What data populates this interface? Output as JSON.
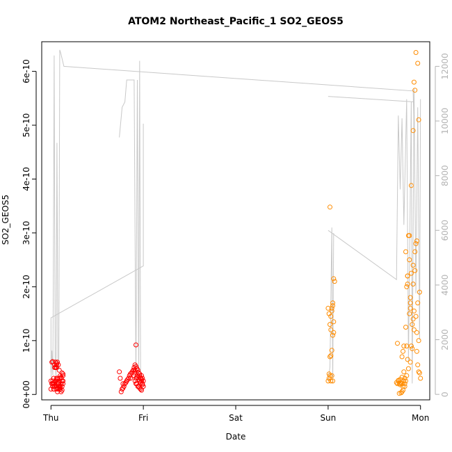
{
  "chart_data": {
    "type": "scatter",
    "title": "ATOM2 Northeast_Pacific_1 SO2_GEOS5",
    "xlabel": "Date",
    "ylabel": "SO2_GEOS5",
    "x_ticks": [
      "Thu",
      "Fri",
      "Sat",
      "Sun",
      "Mon"
    ],
    "x_tick_positions": [
      0,
      1,
      2,
      3,
      4
    ],
    "xlim": [
      -0.1,
      4.1
    ],
    "y_ticks": [
      "0e+00",
      "1e-10",
      "2e-10",
      "3e-10",
      "4e-10",
      "5e-10",
      "6e-10"
    ],
    "ylim": [
      -1e-11,
      6.55e-10
    ],
    "y2_ticks": [
      "0",
      "2000",
      "4000",
      "6000",
      "8000",
      "10000",
      "12000"
    ],
    "y2lim": [
      -200,
      12900
    ],
    "colors": {
      "series_red": "#ff0000",
      "series_orange": "#ff8c00",
      "altitude_line": "#c8c8c8",
      "right_axis": "#b3b3b3"
    },
    "altitude_series": {
      "axis": "right",
      "x": [
        0.0,
        0.02,
        0.03,
        0.04,
        0.05,
        0.06,
        0.08,
        0.1,
        0.1,
        0.11,
        0.12,
        0.13,
        0.14,
        0.15,
        0.16,
        0.17,
        0.17,
        1.0,
        1.01,
        1.0,
        0.99,
        0.98,
        0.97,
        0.96,
        0.95,
        0.94,
        0.93,
        0.92,
        0.91,
        0.9,
        0.89,
        0.88,
        0.87,
        0.86,
        0.85,
        0.84,
        0.83,
        0.82,
        0.81,
        0.8,
        0.79,
        0.78,
        0.77,
        0.76,
        0.75,
        0.74,
        0.73,
        0.72,
        0.71,
        0.7,
        0.69,
        0.68,
        0.67,
        0.66,
        0.65,
        0.64,
        0.63,
        0.62,
        0.61,
        0.6,
        0.59,
        0.58,
        0.57,
        0.56,
        0.55,
        0.54,
        0.53,
        0.52,
        0.51,
        0.5,
        0.49,
        0.48,
        0.47,
        0.46,
        0.45,
        0.44,
        0.43,
        0.42,
        0.41,
        0.4,
        0.39,
        0.38,
        0.37,
        0.36,
        0.35,
        0.34,
        0.33,
        0.32,
        0.31,
        0.3,
        0.29,
        0.28,
        0.27,
        0.26,
        0.25,
        0.24,
        0.23,
        0.22,
        0.21,
        0.2,
        0.19,
        0.18
      ],
      "segments": [
        [
          [
            0.0,
            500
          ],
          [
            0.01,
            1600
          ],
          [
            0.02,
            700
          ],
          [
            0.025,
            3700
          ],
          [
            0.035,
            12400
          ],
          [
            0.045,
            1200
          ],
          [
            0.055,
            600
          ],
          [
            0.065,
            9200
          ],
          [
            0.075,
            1000
          ],
          [
            0.085,
            900
          ],
          [
            0.095,
            12600
          ],
          [
            0.105,
            12500
          ],
          [
            0.14,
            12000
          ],
          [
            3.92,
            11100
          ],
          [
            3.93,
            9800
          ]
        ],
        [
          [
            0.0,
            800
          ],
          [
            0.0,
            2800
          ],
          [
            1.0,
            4700
          ],
          [
            1.0,
            9900
          ]
        ],
        [
          [
            0.74,
            9400
          ],
          [
            0.77,
            10500
          ],
          [
            0.8,
            10700
          ],
          [
            0.82,
            11500
          ],
          [
            0.9,
            11500
          ],
          [
            0.92,
            500
          ],
          [
            0.935,
            11500
          ],
          [
            0.95,
            500
          ],
          [
            0.96,
            12200
          ],
          [
            0.97,
            600
          ]
        ],
        [
          [
            3.0,
            10900
          ],
          [
            3.93,
            10700
          ]
        ],
        [
          [
            3.0,
            500
          ],
          [
            3.02,
            1000
          ],
          [
            3.04,
            6100
          ],
          [
            3.05,
            400
          ],
          [
            3.06,
            5900
          ]
        ],
        [
          [
            3.0,
            6000
          ],
          [
            3.74,
            4200
          ],
          [
            3.76,
            10200
          ],
          [
            3.78,
            7500
          ],
          [
            3.8,
            10100
          ],
          [
            3.82,
            6200
          ],
          [
            3.85,
            10800
          ],
          [
            3.87,
            1200
          ],
          [
            3.9,
            10700
          ],
          [
            3.91,
            400
          ],
          [
            3.93,
            11200
          ],
          [
            3.95,
            3700
          ],
          [
            3.97,
            10500
          ],
          [
            3.99,
            2000
          ],
          [
            4.0,
            10800
          ]
        ]
      ]
    },
    "series": [
      {
        "color": "red",
        "x": [
          0.0,
          0.01,
          0.01,
          0.02,
          0.02,
          0.03,
          0.03,
          0.03,
          0.04,
          0.04,
          0.05,
          0.05,
          0.05,
          0.06,
          0.06,
          0.06,
          0.07,
          0.07,
          0.07,
          0.08,
          0.08,
          0.08,
          0.09,
          0.09,
          0.09,
          0.1,
          0.1,
          0.11,
          0.11,
          0.12,
          0.12,
          0.13,
          0.13,
          0.0,
          0.02,
          0.04,
          0.06,
          0.08,
          0.1,
          0.12,
          0.03,
          0.05,
          0.07,
          0.09,
          0.11,
          0.13,
          0.02,
          0.04,
          0.06,
          0.08,
          0.1,
          0.12,
          0.01,
          0.03,
          0.05,
          0.07,
          0.09,
          0.11,
          0.13,
          0.02,
          0.06,
          0.1
        ],
        "y": [
          1e-11,
          2e-11,
          6e-11,
          2.5e-11,
          1.5e-11,
          3e-11,
          1e-11,
          2e-11,
          5.5e-11,
          1.5e-11,
          5e-11,
          2.5e-11,
          6e-11,
          1e-11,
          5.5e-11,
          2e-11,
          6e-11,
          5e-12,
          3e-11,
          5.5e-11,
          1e-11,
          2e-11,
          4.5e-11,
          1.5e-11,
          2.5e-11,
          3.5e-11,
          1e-11,
          2e-11,
          3e-11,
          4e-11,
          1.5e-11,
          2.5e-11,
          3.5e-11,
          2.5e-11,
          2e-11,
          1.5e-11,
          3e-11,
          2e-11,
          1e-11,
          2.5e-11,
          2.2e-11,
          1.8e-11,
          2.8e-11,
          1.2e-11,
          3.2e-11,
          3.8e-11,
          1.5e-11,
          5e-11,
          5.8e-11,
          2.2e-11,
          1.5e-11,
          8e-12,
          2e-11,
          1e-11,
          5e-11,
          1.2e-11,
          3e-11,
          5e-12,
          2e-11,
          6.1e-11,
          5e-11,
          1.3e-11
        ]
      },
      {
        "color": "red",
        "x": [
          0.74,
          0.76,
          0.77,
          0.78,
          0.79,
          0.8,
          0.81,
          0.82,
          0.83,
          0.84,
          0.85,
          0.86,
          0.87,
          0.88,
          0.89,
          0.9,
          0.9,
          0.91,
          0.91,
          0.92,
          0.92,
          0.93,
          0.93,
          0.94,
          0.94,
          0.95,
          0.95,
          0.96,
          0.96,
          0.97,
          0.97,
          0.98,
          0.98,
          0.99,
          0.99,
          1.0,
          1.0,
          0.75,
          0.78,
          0.82,
          0.86,
          0.9,
          0.92,
          0.94,
          0.96,
          0.98,
          0.91,
          0.93,
          0.95,
          0.97,
          0.99,
          0.92,
          0.94,
          0.96,
          0.98
        ],
        "y": [
          4.2e-11,
          5e-12,
          1e-11,
          1.2e-11,
          1.5e-11,
          2e-11,
          2.2e-11,
          2.5e-11,
          2.8e-11,
          3e-11,
          3.5e-11,
          3.8e-11,
          4e-11,
          4.2e-11,
          4.5e-11,
          5e-11,
          3.5e-11,
          5.5e-11,
          2.5e-11,
          5.2e-11,
          3e-11,
          4.8e-11,
          2e-11,
          4.5e-11,
          3.5e-11,
          4e-11,
          1.5e-11,
          3.5e-11,
          2.5e-11,
          3e-11,
          1e-11,
          2.5e-11,
          3.5e-11,
          2e-11,
          3e-11,
          1.5e-11,
          2.5e-11,
          3e-11,
          2e-11,
          2.5e-11,
          3e-11,
          4e-11,
          9.2e-11,
          4.5e-11,
          3.8e-11,
          2.8e-11,
          4.5e-11,
          3.2e-11,
          2.8e-11,
          2.2e-11,
          1.8e-11,
          2e-11,
          1.5e-11,
          1.2e-11,
          8e-12
        ]
      },
      {
        "color": "orange",
        "x": [
          3.0,
          3.01,
          3.02,
          3.03,
          3.04,
          3.05,
          3.06,
          3.07,
          3.02,
          3.03,
          3.04,
          3.05,
          3.06,
          3.0,
          3.01,
          3.02,
          3.03,
          3.04,
          3.05,
          3.06,
          3.01,
          3.03,
          3.05,
          3.02,
          3.04
        ],
        "y": [
          2.5e-11,
          3e-11,
          3.5e-11,
          2.5e-11,
          8.2e-11,
          1.1e-10,
          1.15e-10,
          2.1e-10,
          1.3e-10,
          1.45e-10,
          1.6e-10,
          1.7e-10,
          2.15e-10,
          1.6e-10,
          1.5e-10,
          7e-11,
          1.2e-10,
          3.5e-11,
          2.5e-11,
          1.35e-10,
          3.8e-11,
          7.2e-11,
          1.65e-10,
          3.48e-10,
          1.55e-10
        ]
      },
      {
        "color": "orange",
        "x": [
          3.74,
          3.75,
          3.76,
          3.77,
          3.78,
          3.79,
          3.8,
          3.81,
          3.82,
          3.83,
          3.84,
          3.85,
          3.86,
          3.87,
          3.88,
          3.89,
          3.9,
          3.91,
          3.92,
          3.93,
          3.94,
          3.95,
          3.96,
          3.97,
          3.98,
          3.99,
          4.0,
          3.76,
          3.78,
          3.8,
          3.82,
          3.84,
          3.86,
          3.88,
          3.9,
          3.92,
          3.94,
          3.96,
          3.98,
          3.77,
          3.79,
          3.81,
          3.83,
          3.85,
          3.87,
          3.89,
          3.91,
          3.93,
          3.95,
          3.97,
          3.99,
          3.75,
          3.78,
          3.8,
          3.83,
          3.86,
          3.89,
          3.92,
          3.95,
          3.98,
          3.8,
          3.82,
          3.84,
          3.86,
          3.88,
          3.9,
          3.92,
          3.94,
          3.96,
          3.81,
          3.85,
          3.89,
          3.93,
          3.97
        ],
        "y": [
          2.2e-11,
          2e-11,
          2.5e-11,
          2e-11,
          1.8e-11,
          2.2e-11,
          2e-11,
          1.5e-11,
          2.5e-11,
          3e-11,
          1.25e-10,
          9e-11,
          2.2e-10,
          2.95e-10,
          2.5e-10,
          1.8e-10,
          2.25e-10,
          1.3e-10,
          1.4e-10,
          1.55e-10,
          2.65e-10,
          2.8e-10,
          8e-11,
          5.5e-11,
          4.2e-11,
          4e-11,
          3e-11,
          2.6e-11,
          2.8e-11,
          3.2e-11,
          4.2e-11,
          2.5e-11,
          6.5e-11,
          1.5e-10,
          9e-11,
          2.05e-10,
          2.3e-10,
          2.85e-10,
          1e-10,
          2e-12,
          3e-12,
          8e-12,
          1.5e-11,
          3.5e-11,
          4.8e-11,
          6e-11,
          8.5e-11,
          1.2e-10,
          1.45e-10,
          1.7e-10,
          1.9e-10,
          9.5e-11,
          2.2e-11,
          5e-12,
          2e-11,
          2.2e-10,
          1.7e-10,
          2.4e-10,
          6.35e-10,
          5.1e-10,
          7e-11,
          9e-11,
          2.65e-10,
          2.05e-10,
          2.95e-10,
          3.88e-10,
          4.9e-10,
          5.65e-10,
          1.15e-10,
          8e-11,
          2e-10,
          1.6e-10,
          5.8e-10,
          6.15e-10
        ]
      }
    ]
  }
}
